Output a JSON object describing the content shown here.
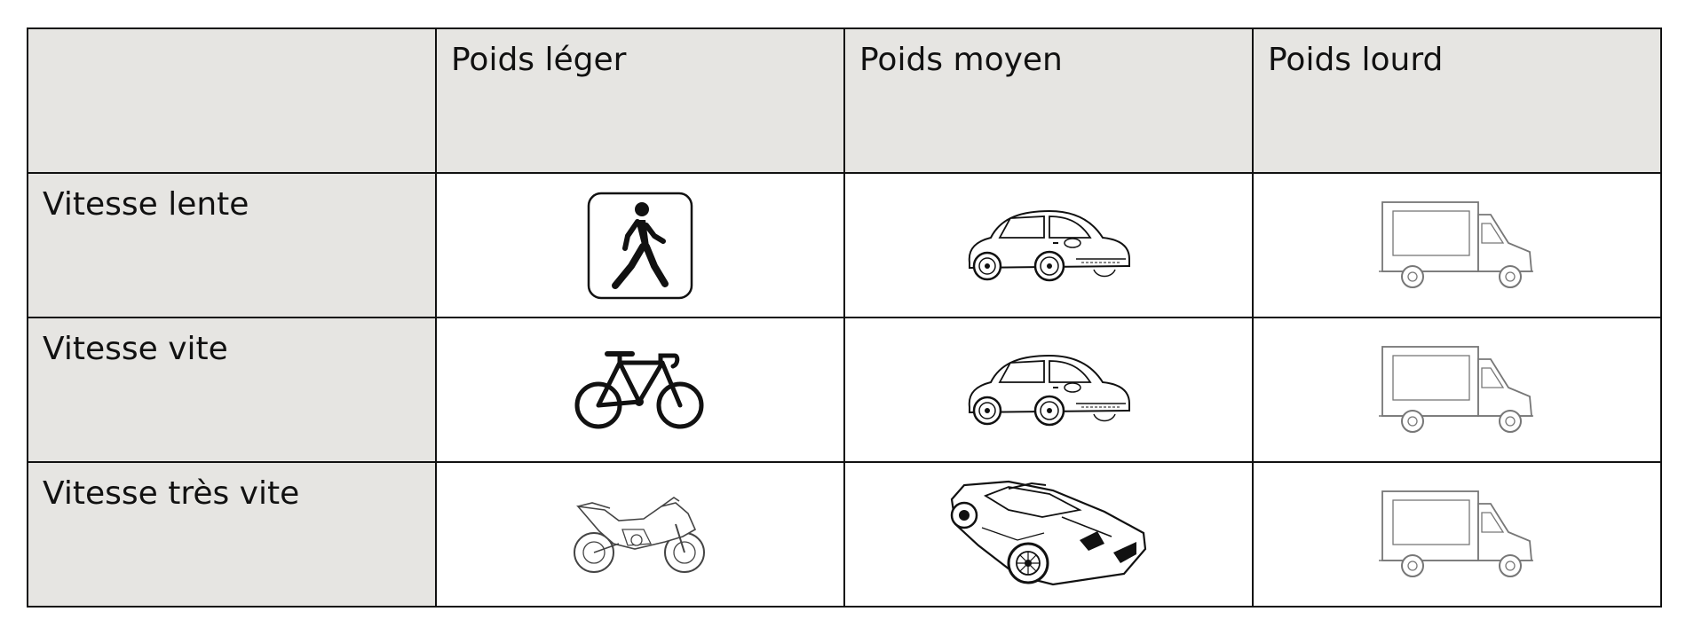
{
  "table": {
    "column_headers": [
      "",
      "Poids léger",
      "Poids moyen",
      "Poids lourd"
    ],
    "rows": [
      {
        "label": "Vitesse lente",
        "icons": [
          "pedestrian-icon",
          "small-car-icon",
          "truck-icon"
        ]
      },
      {
        "label": "Vitesse vite",
        "icons": [
          "bicycle-icon",
          "small-car-icon",
          "truck-icon"
        ]
      },
      {
        "label": "Vitesse très vite",
        "icons": [
          "motorcycle-icon",
          "sports-car-icon",
          "truck-icon"
        ]
      }
    ]
  },
  "colors": {
    "header_background": "#e6e5e2",
    "border": "#111111"
  }
}
